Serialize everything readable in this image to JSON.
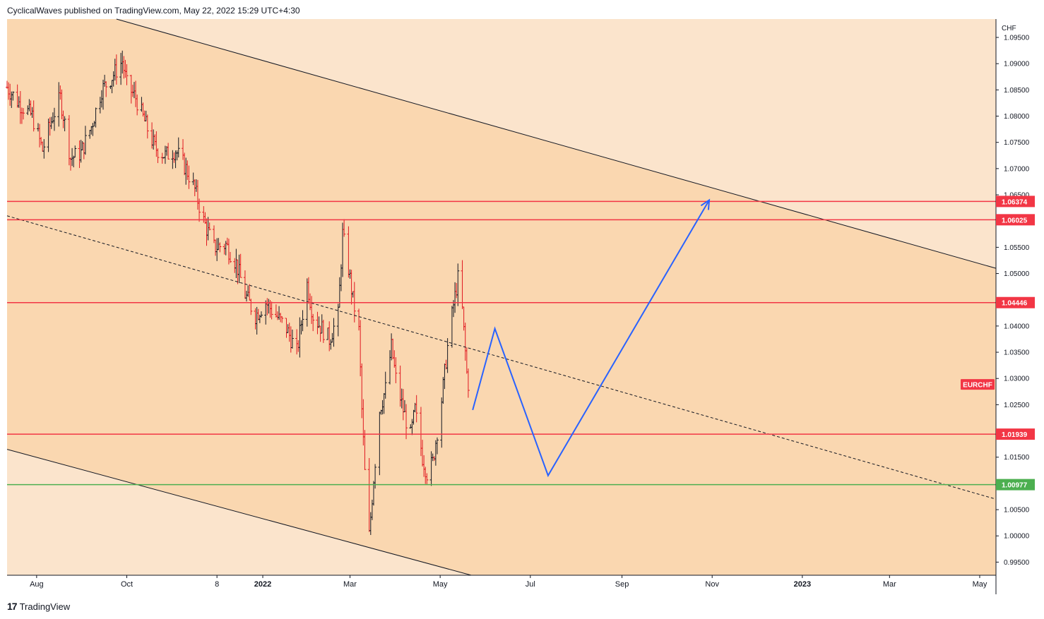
{
  "header": {
    "text": "CyclicalWaves published on TradingView.com, May 22, 2022 15:29 UTC+4:30"
  },
  "footer": {
    "logo_glyph": "17",
    "brand": "TradingView"
  },
  "colors": {
    "outer_bg": "#fbe4cc",
    "channel_fill": "#fad7b0",
    "resistance": "#f23645",
    "support_green": "#4caf50",
    "projection": "#2962ff",
    "candle_up": "#131722",
    "candle_down": "#e0171f"
  },
  "chart_data": {
    "type": "ohlc",
    "symbol": "EURCHF",
    "currency": "CHF",
    "x_ticks": [
      "Aug",
      "Oct",
      "8",
      "2022",
      "Mar",
      "May",
      "Jul",
      "Sep",
      "Nov",
      "2023",
      "Mar",
      "May"
    ],
    "x_range": [
      "2021-07-12",
      "2023-05-12"
    ],
    "y_ticks": [
      "1.09500",
      "1.09000",
      "1.08500",
      "1.08000",
      "1.07500",
      "1.07000",
      "1.06500",
      "1.05500",
      "1.05000",
      "1.04000",
      "1.03500",
      "1.03000",
      "1.02500",
      "1.01500",
      "1.01000",
      "1.00500",
      "1.00000",
      "0.99500"
    ],
    "ylim": [
      0.9925,
      1.0985
    ],
    "levels": [
      {
        "label": "1.06374",
        "value": 1.06374,
        "color": "#f23645"
      },
      {
        "label": "1.06025",
        "value": 1.06025,
        "color": "#f23645"
      },
      {
        "label": "1.04446",
        "value": 1.04446,
        "color": "#f23645"
      },
      {
        "label": "1.01939",
        "value": 1.01939,
        "color": "#f23645"
      },
      {
        "label": "1.00977",
        "value": 1.00977,
        "color": "#4caf50"
      }
    ],
    "symbol_tag": "EURCHF",
    "price_path": [
      [
        "2021-07-12",
        1.0855
      ],
      [
        "2021-07-20",
        1.0825
      ],
      [
        "2021-07-29",
        1.08
      ],
      [
        "2021-08-05",
        1.0735
      ],
      [
        "2021-08-12",
        1.08
      ],
      [
        "2021-08-17",
        1.0835
      ],
      [
        "2021-08-24",
        1.072
      ],
      [
        "2021-08-31",
        1.073
      ],
      [
        "2021-09-07",
        1.078
      ],
      [
        "2021-09-14",
        1.085
      ],
      [
        "2021-09-21",
        1.0875
      ],
      [
        "2021-09-28",
        1.0905
      ],
      [
        "2021-10-01",
        1.086
      ],
      [
        "2021-10-07",
        1.0835
      ],
      [
        "2021-10-13",
        1.079
      ],
      [
        "2021-10-20",
        1.074
      ],
      [
        "2021-10-27",
        1.0725
      ],
      [
        "2021-11-03",
        1.0735
      ],
      [
        "2021-11-10",
        1.07
      ],
      [
        "2021-11-16",
        1.066
      ],
      [
        "2021-11-22",
        1.06
      ],
      [
        "2021-11-29",
        1.055
      ],
      [
        "2021-12-07",
        1.0555
      ],
      [
        "2021-12-14",
        1.052
      ],
      [
        "2021-12-20",
        1.046
      ],
      [
        "2021-12-27",
        1.042
      ],
      [
        "2022-01-03",
        1.0445
      ],
      [
        "2022-01-10",
        1.042
      ],
      [
        "2022-01-17",
        1.0395
      ],
      [
        "2022-01-24",
        1.035
      ],
      [
        "2022-01-31",
        1.048
      ],
      [
        "2022-02-04",
        1.042
      ],
      [
        "2022-02-10",
        1.0395
      ],
      [
        "2022-02-15",
        1.0375
      ],
      [
        "2022-02-21",
        1.042
      ],
      [
        "2022-02-24",
        1.0575
      ],
      [
        "2022-02-28",
        1.051
      ],
      [
        "2022-03-03",
        1.045
      ],
      [
        "2022-03-07",
        1.039
      ],
      [
        "2022-03-09",
        1.024
      ],
      [
        "2022-03-11",
        1.012
      ],
      [
        "2022-03-14",
        1.0
      ],
      [
        "2022-03-17",
        1.011
      ],
      [
        "2022-03-21",
        1.024
      ],
      [
        "2022-03-25",
        1.028
      ],
      [
        "2022-03-29",
        1.036
      ],
      [
        "2022-04-01",
        1.03
      ],
      [
        "2022-04-06",
        1.024
      ],
      [
        "2022-04-11",
        1.019
      ],
      [
        "2022-04-14",
        1.024
      ],
      [
        "2022-04-19",
        1.015
      ],
      [
        "2022-04-22",
        1.012
      ],
      [
        "2022-04-26",
        1.014
      ],
      [
        "2022-05-02",
        1.026
      ],
      [
        "2022-05-06",
        1.036
      ],
      [
        "2022-05-10",
        1.044
      ],
      [
        "2022-05-13",
        1.049
      ],
      [
        "2022-05-16",
        1.043
      ],
      [
        "2022-05-19",
        1.031
      ],
      [
        "2022-05-22",
        1.025
      ]
    ],
    "channel": {
      "upper": [
        [
          "2021-09-24",
          1.0985
        ],
        [
          "2023-05-12",
          1.051
        ]
      ],
      "lower": [
        [
          "2021-07-12",
          1.0165
        ],
        [
          "2022-05-22",
          0.9925
        ]
      ],
      "midline": [
        [
          "2021-07-12",
          1.061
        ],
        [
          "2023-05-12",
          1.007
        ]
      ]
    },
    "projection": [
      [
        "2022-05-23",
        1.024
      ],
      [
        "2022-06-07",
        1.0395
      ],
      [
        "2022-07-13",
        1.0115
      ],
      [
        "2022-10-30",
        1.064
      ]
    ]
  }
}
